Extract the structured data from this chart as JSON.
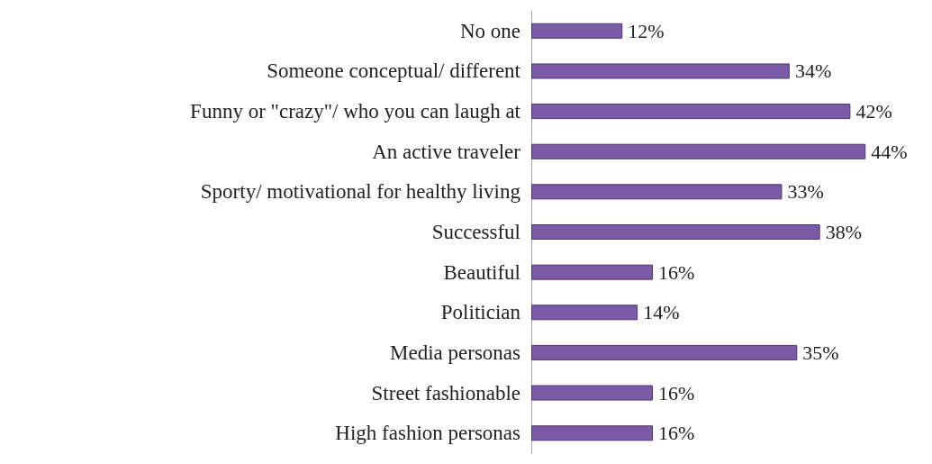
{
  "chart_data": {
    "type": "bar",
    "orientation": "horizontal",
    "categories": [
      "No one",
      "Someone conceptual/ different",
      "Funny or \"crazy\"/ who you can laugh at",
      "An active traveler",
      "Sporty/ motivational for healthy living",
      "Successful",
      "Beautiful",
      "Politician",
      "Media personas",
      "Street fashionable",
      "High fashion personas"
    ],
    "values": [
      12,
      34,
      42,
      44,
      33,
      38,
      16,
      14,
      35,
      16,
      16
    ],
    "value_labels": [
      "12%",
      "34%",
      "42%",
      "44%",
      "33%",
      "38%",
      "16%",
      "14%",
      "35%",
      "16%",
      "16%"
    ],
    "color": "#7b5aa6"
  }
}
